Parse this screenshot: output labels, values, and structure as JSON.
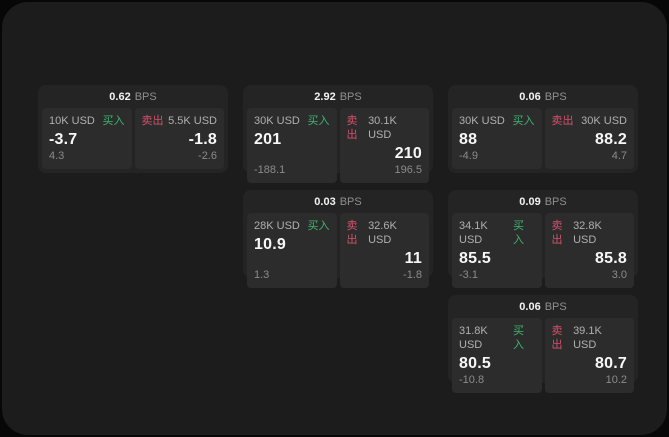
{
  "labels": {
    "unit": "BPS",
    "buy": "买入",
    "sell": "卖出"
  },
  "colors": {
    "outer_background": "#070707",
    "panel_background": "#1c1c1d",
    "card_background": "#242425",
    "tile_background": "#2c2c2d",
    "buy_green": "#3eb56e",
    "sell_red": "#d6506a",
    "text_primary": "#f7f7f7",
    "text_muted": "#8b8b8b",
    "text_label": "#b0b0b0"
  },
  "cards": [
    {
      "bps": "0.62",
      "buy": {
        "amount": "10K USD",
        "price": "-3.7",
        "change": "4.3"
      },
      "sell": {
        "amount": "5.5K USD",
        "price": "-1.8",
        "change": "-2.6"
      }
    },
    {
      "bps": "2.92",
      "buy": {
        "amount": "30K USD",
        "price": "201",
        "change": "-188.1"
      },
      "sell": {
        "amount": "30.1K USD",
        "price": "210",
        "change": "196.5"
      }
    },
    {
      "bps": "0.06",
      "buy": {
        "amount": "30K USD",
        "price": "88",
        "change": "-4.9"
      },
      "sell": {
        "amount": "30K USD",
        "price": "88.2",
        "change": "4.7"
      }
    },
    {
      "bps": "0.03",
      "buy": {
        "amount": "28K USD",
        "price": "10.9",
        "change": "1.3"
      },
      "sell": {
        "amount": "32.6K USD",
        "price": "11",
        "change": "-1.8"
      }
    },
    {
      "bps": "0.09",
      "buy": {
        "amount": "34.1K USD",
        "price": "85.5",
        "change": "-3.1"
      },
      "sell": {
        "amount": "32.8K USD",
        "price": "85.8",
        "change": "3.0"
      }
    },
    {
      "bps": "0.06",
      "buy": {
        "amount": "31.8K USD",
        "price": "80.5",
        "change": "-10.8"
      },
      "sell": {
        "amount": "39.1K USD",
        "price": "80.7",
        "change": "10.2"
      }
    }
  ]
}
